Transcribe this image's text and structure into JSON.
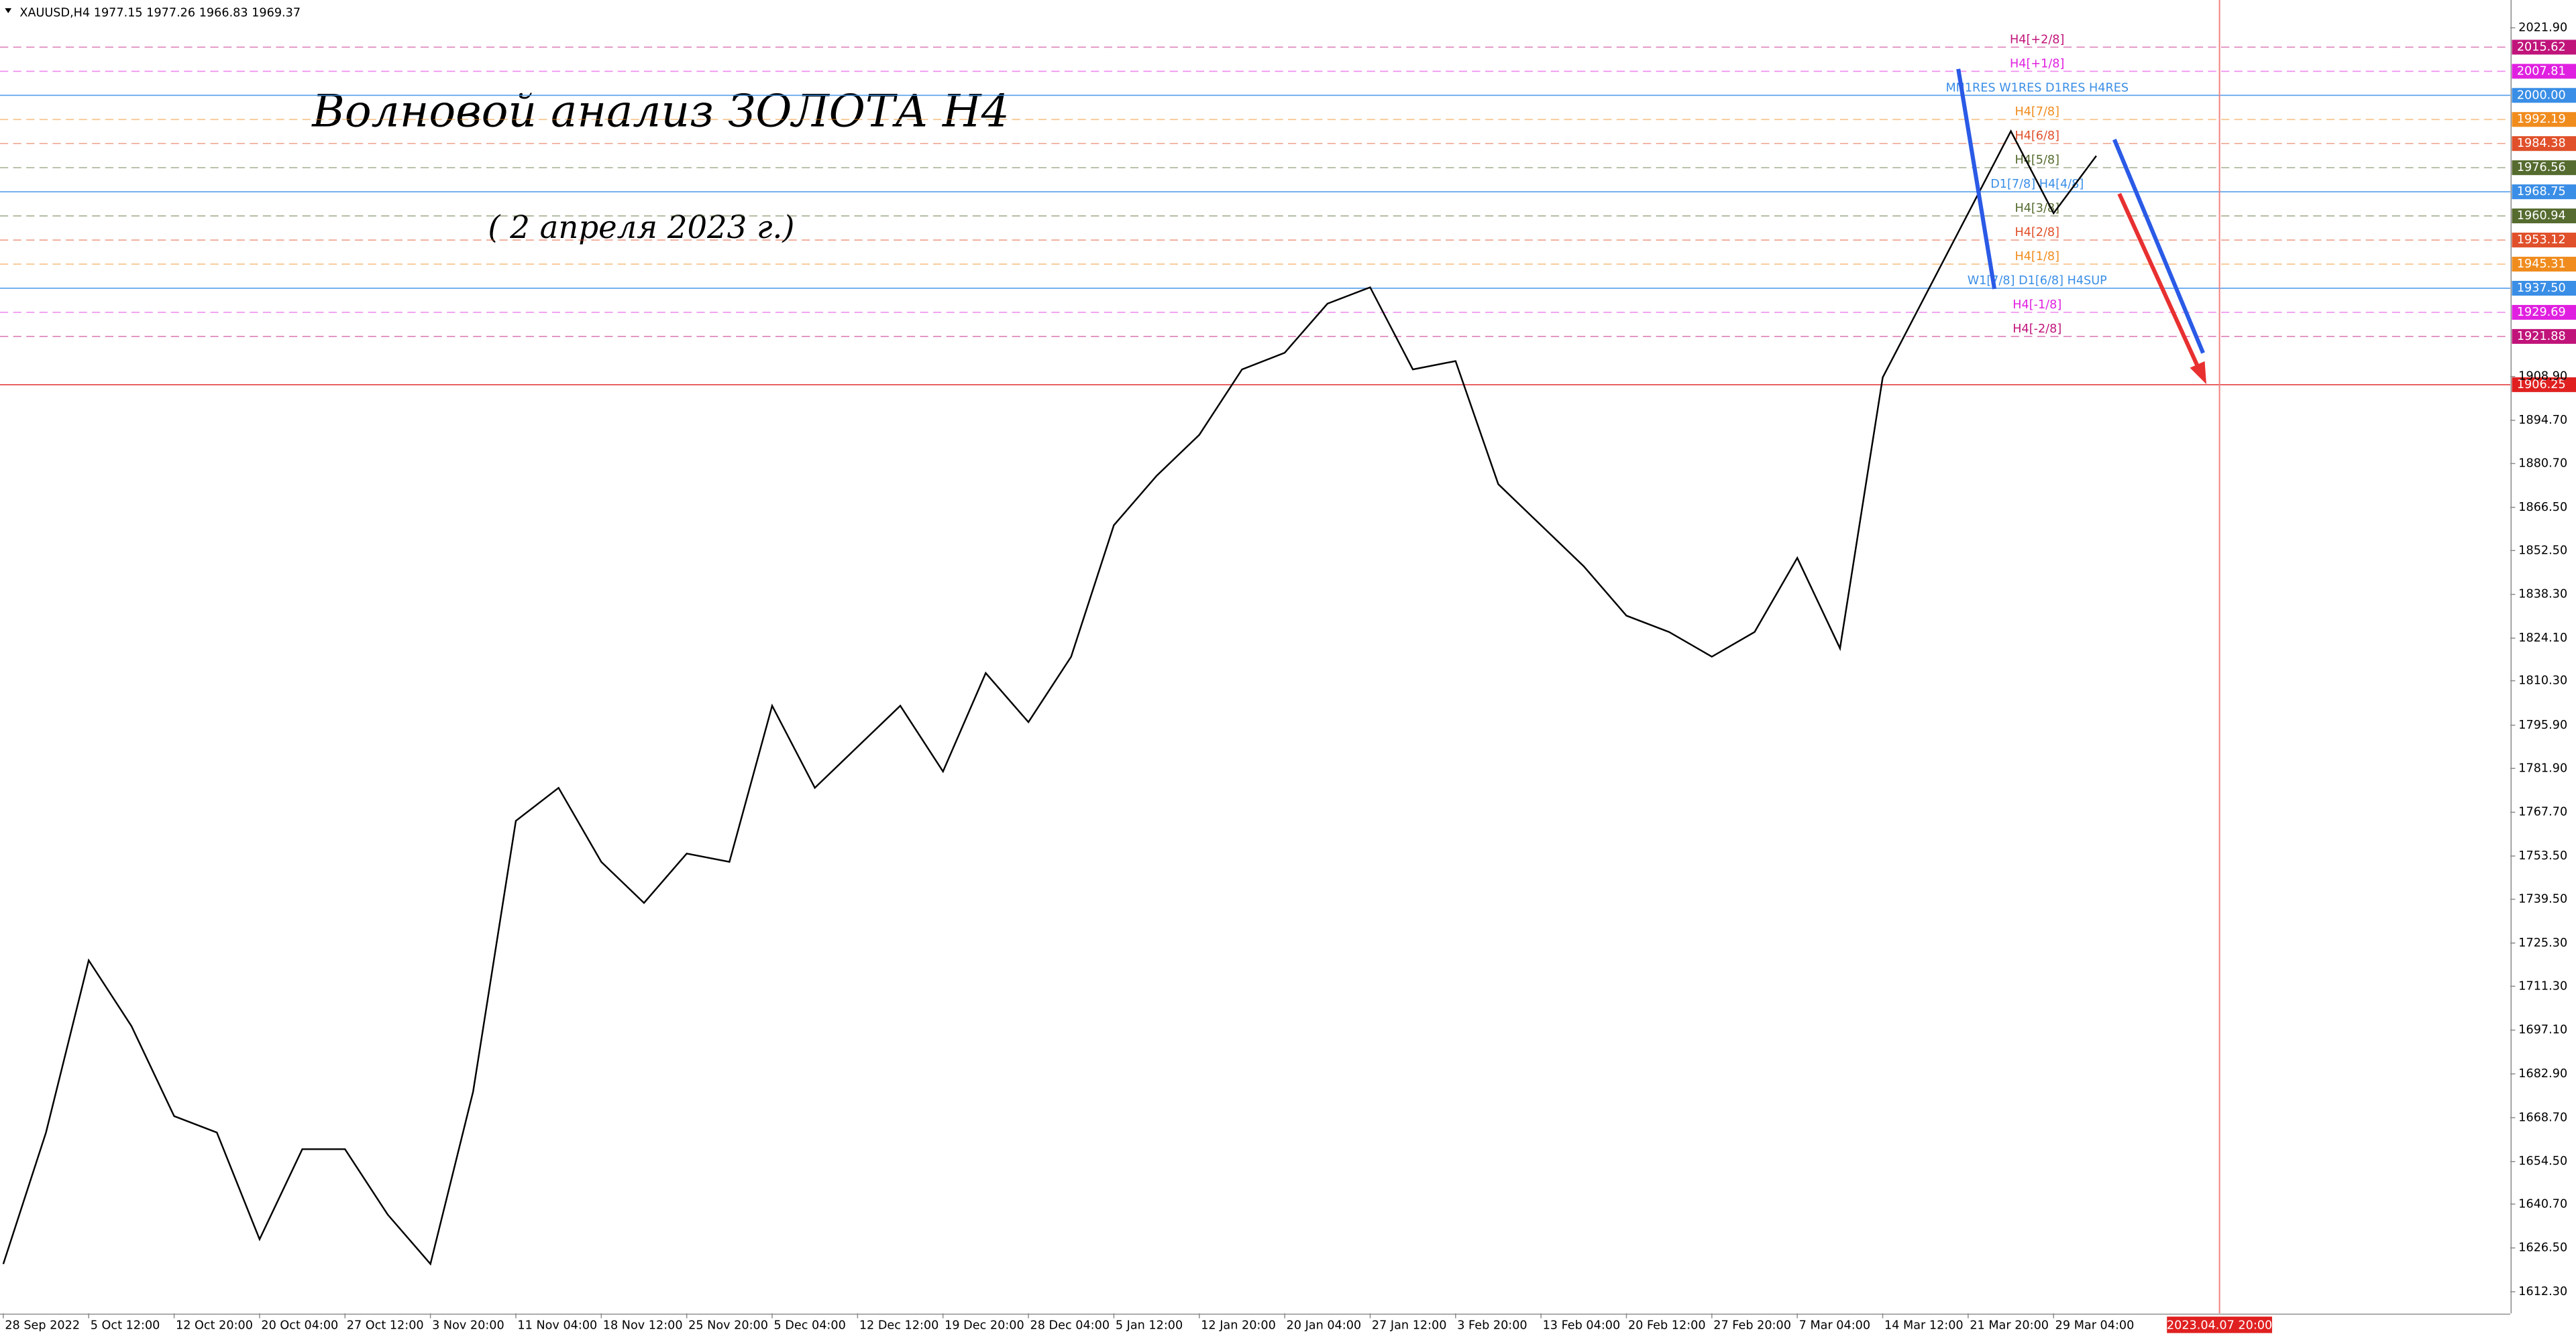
{
  "chart_data": {
    "type": "line",
    "header": "XAUUSD,H4  1977.15 1977.26 1966.83 1969.37",
    "title": "Волновой анализ ЗОЛОТА H4",
    "subtitle": "( 2 апреля 2023 г.)",
    "categories": [
      "28 Sep 2022",
      null,
      "5 Oct 12:00",
      null,
      "12 Oct 20:00",
      null,
      "20 Oct 04:00",
      null,
      "27 Oct 12:00",
      null,
      "3 Nov 20:00",
      null,
      "11 Nov 04:00",
      null,
      "18 Nov 12:00",
      null,
      "25 Nov 20:00",
      null,
      "5 Dec 04:00",
      null,
      "12 Dec 12:00",
      null,
      "19 Dec 20:00",
      null,
      "28 Dec 04:00",
      null,
      "5 Jan 12:00",
      null,
      "12 Jan 20:00",
      null,
      "20 Jan 04:00",
      null,
      "27 Jan 12:00",
      null,
      "3 Feb 20:00",
      null,
      "13 Feb 04:00",
      null,
      "20 Feb 12:00",
      null,
      "27 Feb 20:00",
      null,
      "7 Mar 04:00",
      null,
      "14 Mar 12:00",
      null,
      "21 Mar 20:00",
      null,
      "29 Mar 04:00",
      null
    ],
    "values": [
      1621.3,
      1663.9,
      1719.7,
      1698.4,
      1669.2,
      1663.9,
      1629.3,
      1658.5,
      1658.5,
      1637.3,
      1621.3,
      1677.2,
      1764.9,
      1775.6,
      1751.6,
      1738.3,
      1754.3,
      1751.6,
      1802.2,
      1775.6,
      1788.9,
      1802.2,
      1780.9,
      1812.8,
      1796.9,
      1818.1,
      1860.7,
      1876.7,
      1890.0,
      1911.2,
      1916.6,
      1932.5,
      1937.8,
      1911.2,
      1913.9,
      1874.0,
      1860.7,
      1847.4,
      1831.4,
      1826.1,
      1818.1,
      1826.1,
      1850.1,
      1820.8,
      1908.6,
      1935.2,
      1961.8,
      1988.4,
      1961.8,
      1980.4
    ],
    "color": "#000000",
    "ylim": [
      1605.3,
      2030.9
    ],
    "yticks": [
      {
        "value": 2021.9,
        "label": "2021.90"
      },
      {
        "value": 1908.9,
        "label": "1908.90"
      },
      {
        "value": 1894.7,
        "label": "1894.70"
      },
      {
        "value": 1880.7,
        "label": "1880.70"
      },
      {
        "value": 1866.5,
        "label": "1866.50"
      },
      {
        "value": 1852.5,
        "label": "1852.50"
      },
      {
        "value": 1838.3,
        "label": "1838.30"
      },
      {
        "value": 1824.1,
        "label": "1824.10"
      },
      {
        "value": 1810.3,
        "label": "1810.30"
      },
      {
        "value": 1795.9,
        "label": "1795.90"
      },
      {
        "value": 1781.9,
        "label": "1781.90"
      },
      {
        "value": 1767.7,
        "label": "1767.70"
      },
      {
        "value": 1753.5,
        "label": "1753.50"
      },
      {
        "value": 1739.5,
        "label": "1739.50"
      },
      {
        "value": 1725.3,
        "label": "1725.30"
      },
      {
        "value": 1711.3,
        "label": "1711.30"
      },
      {
        "value": 1697.1,
        "label": "1697.10"
      },
      {
        "value": 1682.9,
        "label": "1682.90"
      },
      {
        "value": 1668.7,
        "label": "1668.70"
      },
      {
        "value": 1654.5,
        "label": "1654.50"
      },
      {
        "value": 1640.7,
        "label": "1640.70"
      },
      {
        "value": 1626.5,
        "label": "1626.50"
      },
      {
        "value": 1612.3,
        "label": "1612.30"
      }
    ],
    "levels": {
      "names": [
        "H4[+2/8]",
        "H4[+1/8]",
        "MN1RES W1RES D1RES H4RES",
        "H4[7/8]",
        "H4[6/8]",
        "H4[5/8]",
        "D1[7/8] H4[4/8]",
        "H4[3/8]",
        "H4[2/8]",
        "H4[1/8]",
        "W1[7/8] D1[6/8] H4SUP",
        "H4[-1/8]",
        "H4[-2/8]",
        null
      ],
      "values": [
        2015.62,
        2007.81,
        2000.0,
        1992.19,
        1984.38,
        1976.56,
        1968.75,
        1960.94,
        1953.12,
        1945.31,
        1937.5,
        1929.69,
        1921.88,
        1906.25
      ],
      "value_labels": [
        "2015.62",
        "2007.81",
        "2000.00",
        "1992.19",
        "1984.38",
        "1976.56",
        "1968.75",
        "1960.94",
        "1953.12",
        "1945.31",
        "1937.50",
        "1929.69",
        "1921.88",
        "1906.25"
      ],
      "colors": [
        "#c0147a",
        "#e020e0",
        "#3a8ee6",
        "#f08c1e",
        "#e0502a",
        "#556b2f",
        "#3a8ee6",
        "#556b2f",
        "#e0502a",
        "#f08c1e",
        "#3a8ee6",
        "#e020e0",
        "#c0147a",
        "#e02020"
      ]
    },
    "cursor_time": "2023.04.07 20:00"
  }
}
